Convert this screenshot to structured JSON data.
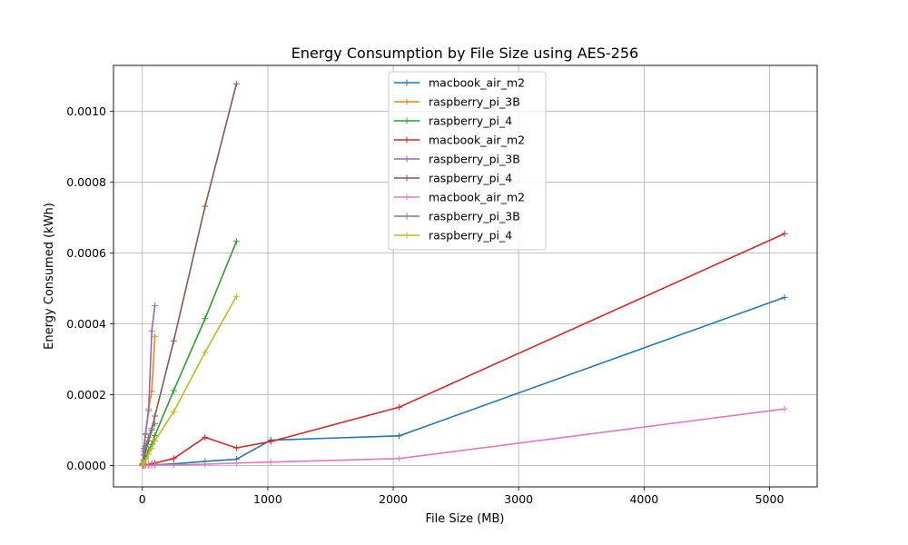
{
  "chart_data": {
    "type": "line",
    "title": "Energy Consumption by File Size using AES-256",
    "xlabel": "File Size (MB)",
    "ylabel": "Energy Consumed (kWh)",
    "xlim": [
      -230,
      5380
    ],
    "ylim": [
      -6e-05,
      0.00113
    ],
    "xticks": [
      0,
      1000,
      2000,
      3000,
      4000,
      5000
    ],
    "xtick_labels": [
      "0",
      "1000",
      "2000",
      "3000",
      "4000",
      "5000"
    ],
    "yticks": [
      0,
      0.0002,
      0.0004,
      0.0006,
      0.0008,
      0.001
    ],
    "ytick_labels": [
      "0.0000",
      "0.0002",
      "0.0004",
      "0.0006",
      "0.0008",
      "0.0010"
    ],
    "grid": true,
    "legend_position": "top-center",
    "marker": "plus",
    "series": [
      {
        "name": "macbook_air_m2",
        "color": "#1f77b4",
        "x": [
          1,
          10,
          25,
          50,
          75,
          100,
          250,
          500,
          750,
          1024,
          2048,
          5120
        ],
        "y": [
          1e-07,
          5e-07,
          8e-07,
          1e-06,
          1.5e-06,
          2e-06,
          5e-06,
          1.2e-05,
          1.8e-05,
          7.2e-05,
          8.4e-05,
          0.000475
        ]
      },
      {
        "name": "raspberry_pi_3B",
        "color": "#ff7f0e",
        "x": [
          1,
          10,
          25,
          50,
          75,
          100
        ],
        "y": [
          4e-06,
          4e-05,
          9e-05,
          0.00016,
          0.00021,
          0.000365
        ]
      },
      {
        "name": "raspberry_pi_4",
        "color": "#2ca02c",
        "x": [
          1,
          10,
          25,
          50,
          75,
          100,
          250,
          500,
          750
        ],
        "y": [
          1e-06,
          9e-06,
          2e-05,
          4.5e-05,
          6e-05,
          8.5e-05,
          0.000212,
          0.000415,
          0.000633
        ]
      },
      {
        "name": "macbook_air_m2",
        "color": "#d62728",
        "x": [
          1,
          10,
          25,
          50,
          75,
          100,
          250,
          500,
          750,
          1024,
          2048,
          5120
        ],
        "y": [
          2e-07,
          1e-06,
          2e-06,
          3e-06,
          5e-06,
          7e-06,
          2e-05,
          8e-05,
          5e-05,
          6.8e-05,
          0.000165,
          0.000655
        ]
      },
      {
        "name": "raspberry_pi_3B",
        "color": "#9467bd",
        "x": [
          1,
          10,
          25,
          50,
          75,
          100
        ],
        "y": [
          5e-06,
          4.8e-05,
          8.8e-05,
          0.000155,
          0.00038,
          0.000452
        ]
      },
      {
        "name": "raspberry_pi_4",
        "color": "#8c564b",
        "x": [
          1,
          10,
          25,
          50,
          75,
          100,
          250,
          500,
          750
        ],
        "y": [
          1.5e-06,
          1.5e-05,
          4e-05,
          7e-05,
          0.0001,
          0.00014,
          0.000352,
          0.000732,
          0.001078
        ]
      },
      {
        "name": "macbook_air_m2",
        "color": "#e377c2",
        "x": [
          1,
          10,
          25,
          50,
          75,
          100,
          250,
          500,
          750,
          1024,
          2048,
          5120
        ],
        "y": [
          5e-08,
          2e-07,
          4e-07,
          8e-07,
          1e-06,
          1.5e-06,
          2e-06,
          4e-06,
          7e-06,
          1e-05,
          2e-05,
          0.00016
        ]
      },
      {
        "name": "raspberry_pi_3B",
        "color": "#7f7f7f",
        "x": [
          1,
          10,
          25,
          50,
          75,
          100
        ],
        "y": [
          3e-06,
          3e-05,
          5.5e-05,
          8e-05,
          0.000105,
          0.000118
        ]
      },
      {
        "name": "raspberry_pi_4",
        "color": "#bcbd22",
        "x": [
          1,
          10,
          25,
          50,
          75,
          100,
          250,
          500,
          750
        ],
        "y": [
          8e-07,
          7e-06,
          1.5e-05,
          3.2e-05,
          4.8e-05,
          7e-05,
          0.000152,
          0.00032,
          0.000478
        ]
      }
    ]
  }
}
